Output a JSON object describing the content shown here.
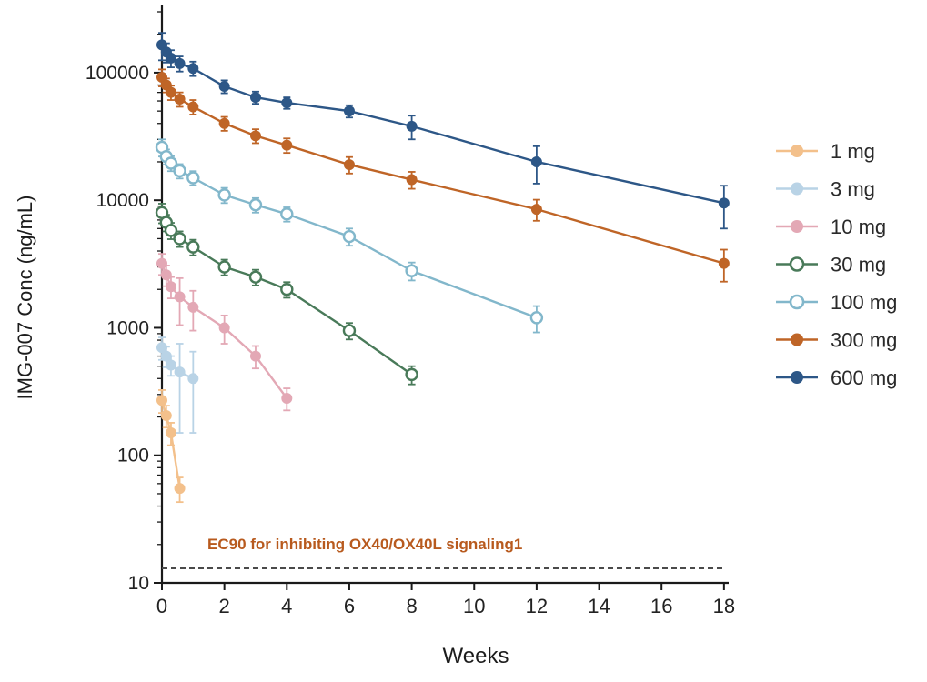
{
  "chart_data": {
    "type": "line",
    "title": "",
    "xlabel": "Weeks",
    "ylabel": "IMG-007 Conc (ng/mL)",
    "y_scale": "log",
    "xlim": [
      0,
      18.15
    ],
    "ylim": [
      10,
      300000
    ],
    "x_ticks": [
      0,
      2,
      4,
      6,
      8,
      10,
      12,
      14,
      16,
      18
    ],
    "y_ticks": [
      10,
      100,
      1000,
      10000,
      100000
    ],
    "grid": "off",
    "legend_position": "right",
    "reference_line": {
      "y": 13,
      "style": "dashed",
      "color": "#4a4a4a",
      "label": "EC90 for inhibiting OX40/OX40L signaling1",
      "label_color": "#b85a1e"
    },
    "series": [
      {
        "name": "1 mg",
        "color": "#f3c08b",
        "marker": "filled",
        "x": [
          0,
          0.14,
          0.29,
          0.57
        ],
        "y": [
          270,
          205,
          150,
          55
        ],
        "err": [
          55,
          40,
          30,
          12
        ]
      },
      {
        "name": "3 mg",
        "color": "#b9d3e6",
        "marker": "filled",
        "x": [
          0,
          0.14,
          0.29,
          0.57,
          1
        ],
        "y": [
          700,
          600,
          510,
          450,
          400
        ],
        "err": [
          140,
          110,
          90,
          300,
          250
        ]
      },
      {
        "name": "10 mg",
        "color": "#e3a8b5",
        "marker": "filled",
        "x": [
          0,
          0.14,
          0.29,
          0.57,
          1,
          2,
          3,
          4
        ],
        "y": [
          3200,
          2600,
          2100,
          1750,
          1450,
          1000,
          600,
          280
        ],
        "err": [
          600,
          480,
          400,
          700,
          500,
          250,
          120,
          55
        ]
      },
      {
        "name": "30 mg",
        "color": "#497a59",
        "marker": "open",
        "x": [
          0,
          0.14,
          0.29,
          0.57,
          1,
          2,
          3,
          4,
          6,
          8
        ],
        "y": [
          8000,
          6700,
          5800,
          5000,
          4300,
          3000,
          2500,
          2000,
          950,
          430
        ],
        "err": [
          1400,
          1000,
          850,
          700,
          600,
          420,
          350,
          280,
          140,
          70
        ]
      },
      {
        "name": "100 mg",
        "color": "#82b7cb",
        "marker": "open",
        "x": [
          0,
          0.14,
          0.29,
          0.57,
          1,
          2,
          3,
          4,
          6,
          8,
          12
        ],
        "y": [
          26000,
          22000,
          19500,
          17000,
          15000,
          11000,
          9200,
          7800,
          5200,
          2800,
          1200
        ],
        "err": [
          4000,
          3000,
          2600,
          2200,
          1900,
          1500,
          1200,
          1000,
          800,
          450,
          280
        ]
      },
      {
        "name": "300 mg",
        "color": "#bf6527",
        "marker": "filled",
        "x": [
          0,
          0.14,
          0.29,
          0.57,
          1,
          2,
          3,
          4,
          6,
          8,
          12,
          18
        ],
        "y": [
          92000,
          80000,
          70000,
          62000,
          54000,
          40000,
          32000,
          27000,
          19000,
          14500,
          8500,
          3200
        ],
        "err": [
          14000,
          10000,
          9000,
          8000,
          7000,
          5000,
          4000,
          3500,
          2800,
          2200,
          1600,
          900
        ]
      },
      {
        "name": "600 mg",
        "color": "#2d5787",
        "marker": "filled",
        "x": [
          0,
          0.14,
          0.29,
          0.57,
          1,
          2,
          3,
          4,
          6,
          8,
          12,
          18
        ],
        "y": [
          165000,
          145000,
          130000,
          118000,
          108000,
          78000,
          64000,
          58000,
          50000,
          38000,
          20000,
          9500
        ],
        "err": [
          40000,
          25000,
          20000,
          16000,
          14000,
          9000,
          7000,
          6000,
          5500,
          8000,
          6500,
          3500
        ]
      }
    ]
  }
}
